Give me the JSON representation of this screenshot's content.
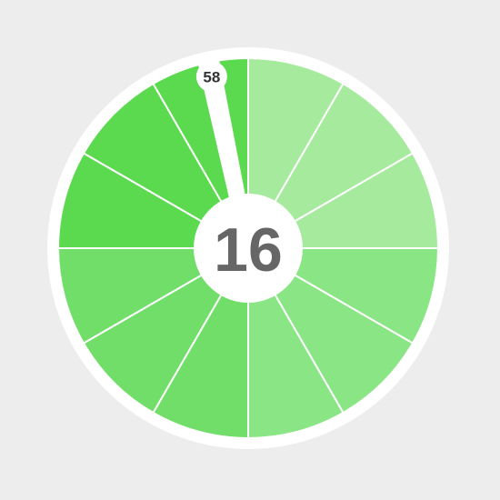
{
  "timer": {
    "center_value": "16",
    "hand_label": "58",
    "hand_value": 58,
    "segment_count": 12
  },
  "colors": {
    "background": "#ededed",
    "rim": "#ffffff",
    "segment_separator": "#ffffff",
    "segments": [
      "#a6eb9d",
      "#a6eb9d",
      "#a6eb9d",
      "#8ae584",
      "#8ae584",
      "#8ae584",
      "#72de6a",
      "#72de6a",
      "#72de6a",
      "#5bd94f",
      "#5bd94f",
      "#5bd94f"
    ],
    "hand": "#ffffff",
    "center_text": "#666666",
    "hand_text": "#333333"
  }
}
